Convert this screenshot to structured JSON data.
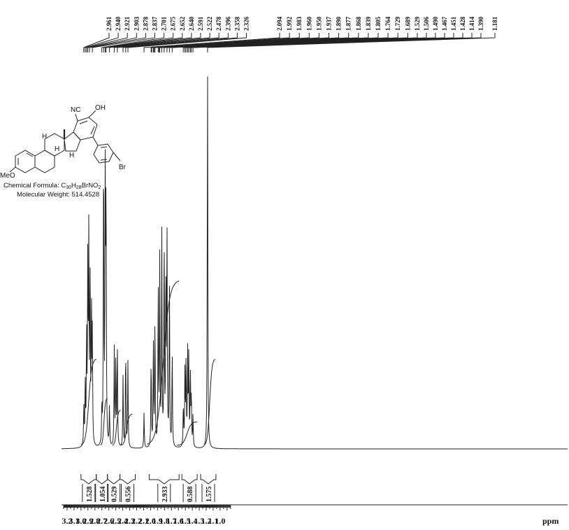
{
  "chart_data": {
    "type": "line",
    "x_axis": {
      "unit_label": "ppm",
      "reversed": true,
      "range": [
        3.2,
        0.9
      ],
      "tick_labels": [
        "3.2",
        "3.1",
        "3.0",
        "2.9",
        "2.8",
        "2.7",
        "2.6",
        "2.5",
        "2.4",
        "2.3",
        "2.2",
        "2.1",
        "2.0",
        "1.9",
        "1.8",
        "1.7",
        "1.6",
        "1.5",
        "1.4",
        "1.3",
        "1.2",
        "1.1",
        "1.0"
      ]
    },
    "peak_labels": [
      "2.961",
      "2.940",
      "2.921",
      "2.903",
      "2.878",
      "2.837",
      "2.701",
      "2.675",
      "2.652",
      "2.640",
      "2.591",
      "2.522",
      "2.478",
      "2.396",
      "2.358",
      "2.326",
      "2.094",
      "1.992",
      "1.983",
      "1.960",
      "1.950",
      "1.937",
      "1.890",
      "1.877",
      "1.868",
      "1.839",
      "1.805",
      "1.764",
      "1.729",
      "1.689",
      "1.529",
      "1.506",
      "1.490",
      "1.467",
      "1.451",
      "1.428",
      "1.414",
      "1.390",
      "1.181"
    ],
    "integrals": [
      {
        "value": "1.528",
        "from": 3.0,
        "to": 2.78
      },
      {
        "value": "1.054",
        "from": 2.78,
        "to": 2.62
      },
      {
        "value": "0.529",
        "from": 2.62,
        "to": 2.44
      },
      {
        "value": "0.556",
        "from": 2.44,
        "to": 2.22
      },
      {
        "value": "2.933",
        "from": 2.02,
        "to": 1.59
      },
      {
        "value": "0.588",
        "from": 1.55,
        "to": 1.33
      },
      {
        "value": "1.575",
        "from": 1.28,
        "to": 1.06
      }
    ],
    "peaks": [
      {
        "ppm": 2.96,
        "height": 0.1
      },
      {
        "ppm": 2.94,
        "height": 0.16
      },
      {
        "ppm": 2.92,
        "height": 0.28
      },
      {
        "ppm": 2.903,
        "height": 0.45
      },
      {
        "ppm": 2.888,
        "height": 0.52
      },
      {
        "ppm": 2.87,
        "height": 0.45
      },
      {
        "ppm": 2.85,
        "height": 0.36
      },
      {
        "ppm": 2.837,
        "height": 0.28
      },
      {
        "ppm": 2.675,
        "height": 0.8
      },
      {
        "ppm": 2.652,
        "height": 0.65
      },
      {
        "ppm": 2.64,
        "height": 0.66
      },
      {
        "ppm": 2.7,
        "height": 0.1
      },
      {
        "ppm": 2.591,
        "height": 0.1
      },
      {
        "ppm": 2.522,
        "height": 0.25
      },
      {
        "ppm": 2.5,
        "height": 0.23
      },
      {
        "ppm": 2.478,
        "height": 0.27
      },
      {
        "ppm": 2.396,
        "height": 0.18
      },
      {
        "ppm": 2.358,
        "height": 0.26
      },
      {
        "ppm": 2.326,
        "height": 0.22
      },
      {
        "ppm": 2.094,
        "height": 0.09
      },
      {
        "ppm": 1.992,
        "height": 0.23
      },
      {
        "ppm": 1.96,
        "height": 0.27
      },
      {
        "ppm": 1.937,
        "height": 0.33
      },
      {
        "ppm": 1.89,
        "height": 0.42
      },
      {
        "ppm": 1.868,
        "height": 0.47
      },
      {
        "ppm": 1.839,
        "height": 0.55
      },
      {
        "ppm": 1.805,
        "height": 0.55
      },
      {
        "ppm": 1.78,
        "height": 0.44
      },
      {
        "ppm": 1.764,
        "height": 0.55
      },
      {
        "ppm": 1.729,
        "height": 0.43
      },
      {
        "ppm": 1.689,
        "height": 0.25
      },
      {
        "ppm": 1.529,
        "height": 0.11
      },
      {
        "ppm": 1.506,
        "height": 0.19
      },
      {
        "ppm": 1.49,
        "height": 0.22
      },
      {
        "ppm": 1.467,
        "height": 0.24
      },
      {
        "ppm": 1.451,
        "height": 0.22
      },
      {
        "ppm": 1.428,
        "height": 0.2
      },
      {
        "ppm": 1.414,
        "height": 0.13
      },
      {
        "ppm": 1.39,
        "height": 0.08
      },
      {
        "ppm": 1.181,
        "height": 1.0
      }
    ]
  },
  "structure": {
    "label_nc": "NC",
    "label_oh": "OH",
    "label_meo": "MeO",
    "label_br": "Br",
    "label_h1": "H",
    "label_h2": "H",
    "label_h3": "H",
    "formula_prefix": "Chemical Formula: C",
    "formula_c_count": "30",
    "formula_h": "H",
    "formula_h_count": "28",
    "formula_rest": "BrNO",
    "formula_o_count": "2",
    "weight": "Molecular Weight: 514.4528"
  }
}
